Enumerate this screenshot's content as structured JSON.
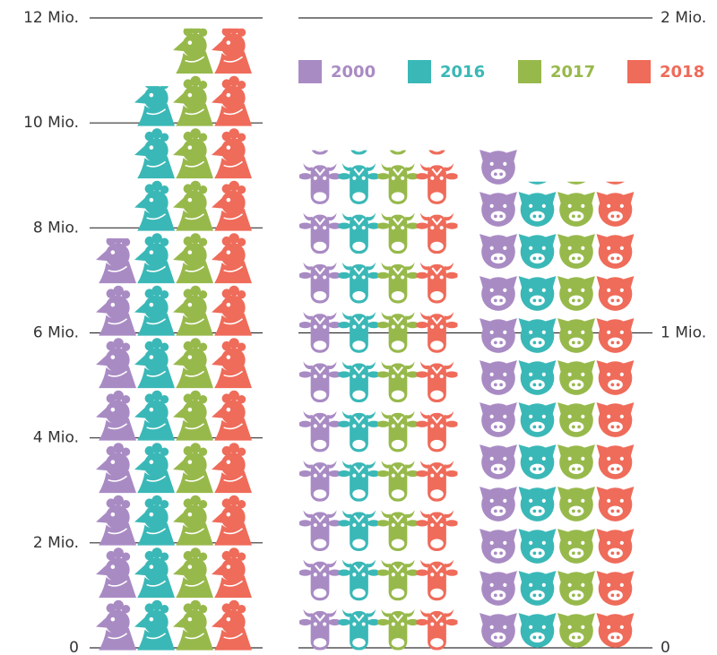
{
  "chart_data": {
    "type": "pictogram",
    "categories": [
      null,
      null,
      null
    ],
    "category_axes": [
      "y",
      "y2",
      "y2"
    ],
    "series": [
      {
        "name": "2000",
        "color": "#a98bc4",
        "values": [
          7.8,
          1.58,
          1.6
        ]
      },
      {
        "name": "2016",
        "color": "#3ab8b7",
        "values": [
          10.7,
          1.58,
          1.48
        ]
      },
      {
        "name": "2017",
        "color": "#97b94b",
        "values": [
          11.8,
          1.58,
          1.48
        ]
      },
      {
        "name": "2018",
        "color": "#ef6b5a",
        "values": [
          11.8,
          1.58,
          1.48
        ]
      }
    ],
    "ylim": [
      0,
      12
    ],
    "yticks": [
      0,
      {
        "value": 2,
        "label": "2 Mio."
      },
      {
        "value": 4,
        "label": "4 Mio."
      },
      {
        "value": 6,
        "label": "6 Mio."
      },
      {
        "value": 8,
        "label": "8 Mio."
      },
      {
        "value": 10,
        "label": "10 Mio."
      },
      {
        "value": 12,
        "label": "12 Mio."
      }
    ],
    "y2lim": [
      0,
      2
    ],
    "y2ticks": [
      0,
      {
        "value": 1,
        "label": "1 Mio."
      },
      {
        "value": 2,
        "label": "2 Mio."
      }
    ],
    "legend": "top"
  }
}
